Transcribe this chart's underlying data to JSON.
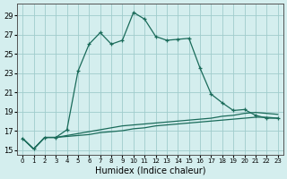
{
  "xlabel": "Humidex (Indice chaleur)",
  "background_color": "#d4eeee",
  "grid_color": "#a0cccc",
  "line_color": "#1a6b5a",
  "x_values": [
    0,
    1,
    2,
    3,
    4,
    5,
    6,
    7,
    8,
    9,
    10,
    11,
    12,
    13,
    14,
    15,
    16,
    17,
    18,
    19,
    20,
    21,
    22,
    23
  ],
  "y_main": [
    16.2,
    15.1,
    16.3,
    16.3,
    17.1,
    23.2,
    26.0,
    27.2,
    26.0,
    26.4,
    29.3,
    28.6,
    26.8,
    26.4,
    26.5,
    26.6,
    23.5,
    20.8,
    19.9,
    19.1,
    19.2,
    18.6,
    18.3,
    18.3
  ],
  "y_low1": [
    16.2,
    15.1,
    16.3,
    16.3,
    16.4,
    16.5,
    16.6,
    16.8,
    16.9,
    17.0,
    17.2,
    17.3,
    17.5,
    17.6,
    17.7,
    17.8,
    17.9,
    18.0,
    18.1,
    18.2,
    18.3,
    18.4,
    18.4,
    18.3
  ],
  "y_low2": [
    16.2,
    15.1,
    16.3,
    16.3,
    16.5,
    16.7,
    16.9,
    17.1,
    17.3,
    17.5,
    17.6,
    17.7,
    17.8,
    17.9,
    18.0,
    18.1,
    18.2,
    18.3,
    18.5,
    18.6,
    18.8,
    18.9,
    18.8,
    18.7
  ],
  "ylim": [
    14.5,
    30.2
  ],
  "yticks": [
    15,
    17,
    19,
    21,
    23,
    25,
    27,
    29
  ],
  "xlim": [
    -0.5,
    23.5
  ],
  "xtick_labels": [
    "0",
    "1",
    "2",
    "3",
    "4",
    "5",
    "6",
    "7",
    "8",
    "9",
    "10",
    "11",
    "12",
    "13",
    "14",
    "15",
    "16",
    "17",
    "18",
    "19",
    "20",
    "21",
    "22",
    "23"
  ],
  "xlabel_fontsize": 7,
  "ytick_fontsize": 6,
  "xtick_fontsize": 5
}
